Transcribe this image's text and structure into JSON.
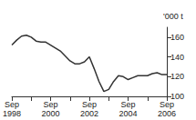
{
  "chart_data": {
    "type": "line",
    "y_label": "'000 t",
    "categories": [
      "Sep\n1998",
      null,
      null,
      null,
      null,
      null,
      null,
      null,
      "Sep\n2000",
      null,
      null,
      null,
      null,
      null,
      null,
      null,
      "Sep\n2002",
      null,
      null,
      null,
      null,
      null,
      null,
      null,
      "Sep\n2004",
      null,
      null,
      null,
      null,
      null,
      null,
      null,
      "Sep\n2006"
    ],
    "values": [
      152,
      157,
      161,
      162,
      160,
      156,
      155,
      155,
      152,
      149,
      146,
      141,
      136,
      133,
      133,
      135,
      140,
      128,
      115,
      105,
      107,
      115,
      121,
      120,
      117,
      119,
      121,
      121,
      121,
      123,
      124,
      122,
      122
    ],
    "color": "#333333",
    "ylim": [
      100,
      170
    ],
    "yticks": [
      100,
      120,
      140,
      160
    ],
    "grid": false
  }
}
